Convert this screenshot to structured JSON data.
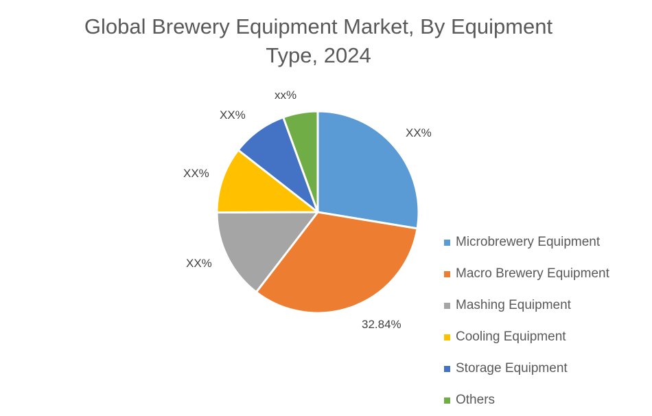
{
  "chart_data": {
    "type": "pie",
    "title": "Global Brewery Equipment Market, By Equipment Type, 2024",
    "title_lines": [
      "Global Brewery Equipment Market, By Equipment",
      "Type, 2024"
    ],
    "categories": [
      "Microbrewery Equipment",
      "Macro Brewery Equipment",
      "Mashing Equipment",
      "Cooling Equipment",
      "Storage Equipment",
      "Others"
    ],
    "values": [
      27.6,
      32.84,
      14.5,
      10.6,
      8.9,
      5.56
    ],
    "data_labels": [
      "XX%",
      "32.84%",
      "XX%",
      "XX%",
      "XX%",
      "xx%"
    ],
    "colors": [
      "#5B9BD5",
      "#ED7D31",
      "#A5A5A5",
      "#FFC000",
      "#4472C4",
      "#70AD47"
    ],
    "legend_position": "right",
    "start_angle_deg": 0,
    "direction": "clockwise"
  }
}
